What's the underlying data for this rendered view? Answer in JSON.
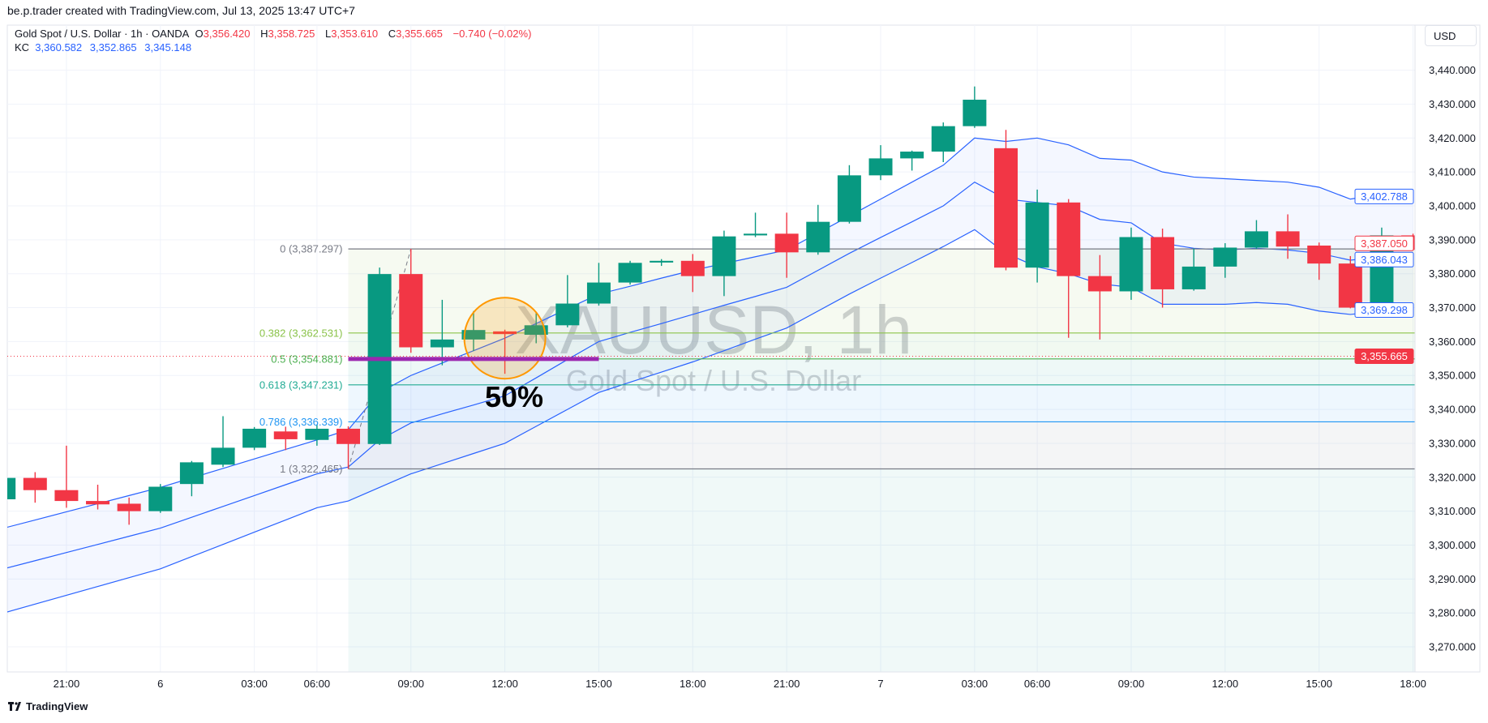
{
  "credit": "be.p.trader created with TradingView.com, Jul 13, 2025 13:47 UTC+7",
  "legend": {
    "symbol": "Gold Spot / U.S. Dollar · 1h · OANDA",
    "o_label": "O",
    "o": "3,356.420",
    "h_label": "H",
    "h": "3,358.725",
    "l_label": "L",
    "l": "3,353.610",
    "c_label": "C",
    "c": "3,355.665",
    "change": "−0.740 (−0.02%)",
    "kc_label": "KC",
    "kc_values": [
      "3,360.582",
      "3,352.865",
      "3,345.148"
    ]
  },
  "currency_button": "USD",
  "branding": "TradingView",
  "chart_data": {
    "type": "candlestick",
    "symbol_watermark": "XAUUSD, 1h",
    "symbol_watermark_sub": "Gold Spot / U.S. Dollar",
    "colors": {
      "up": "#089981",
      "down": "#f23645",
      "kc": "#2962ff",
      "fib_anchor_line": "#9c27b0",
      "highlight_circle": "#ff9800"
    },
    "ylim": [
      3263,
      3450
    ],
    "grid": true,
    "y_ticks": [
      "3,270.000",
      "3,280.000",
      "3,290.000",
      "3,300.000",
      "3,310.000",
      "3,320.000",
      "3,330.000",
      "3,340.000",
      "3,350.000",
      "3,360.000",
      "3,370.000",
      "3,380.000",
      "3,390.000",
      "3,400.000",
      "3,410.000",
      "3,420.000",
      "3,430.000",
      "3,440.000"
    ],
    "y_tick_values": [
      3270,
      3280,
      3290,
      3300,
      3310,
      3320,
      3330,
      3340,
      3350,
      3360,
      3370,
      3380,
      3390,
      3400,
      3410,
      3420,
      3430,
      3440
    ],
    "x_ticks": [
      {
        "candle": 2,
        "label": "21:00"
      },
      {
        "candle": 5,
        "label": "6"
      },
      {
        "candle": 8,
        "label": "03:00"
      },
      {
        "candle": 10,
        "label": "06:00"
      },
      {
        "candle": 13,
        "label": "09:00"
      },
      {
        "candle": 16,
        "label": "12:00"
      },
      {
        "candle": 19,
        "label": "15:00"
      },
      {
        "candle": 22,
        "label": "18:00"
      },
      {
        "candle": 25,
        "label": "21:00"
      },
      {
        "candle": 28,
        "label": "7"
      },
      {
        "candle": 31,
        "label": "03:00"
      },
      {
        "candle": 33,
        "label": "06:00"
      },
      {
        "candle": 36,
        "label": "09:00"
      },
      {
        "candle": 39,
        "label": "12:00"
      },
      {
        "candle": 42,
        "label": "15:00"
      },
      {
        "candle": 45,
        "label": "18:00"
      }
    ],
    "candles_fields": [
      "time",
      "open",
      "high",
      "low",
      "close"
    ],
    "candles": [
      [
        "19:00",
        3313.5,
        3320.0,
        3313.0,
        3319.8
      ],
      [
        "20:00",
        3319.8,
        3321.5,
        3312.5,
        3316.2
      ],
      [
        "21:00",
        3316.2,
        3329.3,
        3311.0,
        3313.0
      ],
      [
        "22:00",
        3313.0,
        3317.8,
        3310.5,
        3312.0
      ],
      [
        "23:00",
        3312.2,
        3314.0,
        3306.0,
        3310.0
      ],
      [
        "00:00",
        3310.0,
        3318.0,
        3309.5,
        3317.2
      ],
      [
        "01:00",
        3318.0,
        3324.8,
        3314.4,
        3324.4
      ],
      [
        "02:00",
        3323.7,
        3338.0,
        3323.0,
        3328.7
      ],
      [
        "03:00",
        3328.7,
        3334.8,
        3328.0,
        3334.3
      ],
      [
        "05:00",
        3333.5,
        3334.9,
        3328.0,
        3331.2
      ],
      [
        "06:00",
        3331.0,
        3335.5,
        3329.3,
        3334.3
      ],
      [
        "07:00",
        3334.3,
        3335.0,
        3322.465,
        3329.8
      ],
      [
        "08:00",
        3329.8,
        3381.8,
        3329.5,
        3379.9
      ],
      [
        "09:00",
        3379.9,
        3387.297,
        3356.7,
        3358.3
      ],
      [
        "10:00",
        3358.3,
        3372.3,
        3353.0,
        3360.6
      ],
      [
        "11:00",
        3360.6,
        3369.0,
        3357.2,
        3363.4
      ],
      [
        "12:00",
        3363.0,
        3363.5,
        3350.5,
        3362.2
      ],
      [
        "13:00",
        3362.0,
        3368.4,
        3359.5,
        3364.8
      ],
      [
        "14:00",
        3364.8,
        3379.6,
        3364.2,
        3371.2
      ],
      [
        "15:00",
        3371.2,
        3383.2,
        3370.6,
        3377.4
      ],
      [
        "16:00",
        3377.4,
        3383.8,
        3376.8,
        3383.2
      ],
      [
        "17:00",
        3383.3,
        3384.3,
        3382.3,
        3383.8
      ],
      [
        "18:00",
        3383.8,
        3385.8,
        3374.6,
        3379.3
      ],
      [
        "19:00",
        3379.3,
        3392.7,
        3373.4,
        3391.0
      ],
      [
        "20:00",
        3391.3,
        3398.0,
        3390.8,
        3391.8
      ],
      [
        "21:00",
        3391.8,
        3398.0,
        3378.8,
        3386.3
      ],
      [
        "22:00",
        3386.3,
        3400.3,
        3385.6,
        3395.3
      ],
      [
        "23:00",
        3395.3,
        3412.0,
        3394.8,
        3409.0
      ],
      [
        "00:00",
        3409.0,
        3417.9,
        3407.6,
        3414.0
      ],
      [
        "01:00",
        3414.0,
        3416.3,
        3410.4,
        3416.0
      ],
      [
        "02:00",
        3416.0,
        3424.6,
        3412.9,
        3423.5
      ],
      [
        "03:00",
        3423.5,
        3435.2,
        3423.0,
        3431.3
      ],
      [
        "05:00",
        3417.0,
        3422.4,
        3381.0,
        3381.8
      ],
      [
        "06:00",
        3381.8,
        3404.8,
        3377.4,
        3401.0
      ],
      [
        "07:00",
        3401.0,
        3402.0,
        3361.1,
        3379.3
      ],
      [
        "08:00",
        3379.3,
        3385.5,
        3360.6,
        3374.8
      ],
      [
        "09:00",
        3374.8,
        3393.6,
        3372.3,
        3390.8
      ],
      [
        "10:00",
        3390.8,
        3393.3,
        3370.0,
        3375.4
      ],
      [
        "11:00",
        3375.4,
        3387.4,
        3375.0,
        3382.1
      ],
      [
        "12:00",
        3382.1,
        3389.0,
        3378.8,
        3387.7
      ],
      [
        "13:00",
        3387.7,
        3395.8,
        3387.3,
        3392.5
      ],
      [
        "14:00",
        3392.5,
        3397.5,
        3384.4,
        3388.0
      ],
      [
        "15:00",
        3388.3,
        3389.2,
        3378.2,
        3383.0
      ],
      [
        "16:00",
        3383.0,
        3385.2,
        3369.8,
        3370.0
      ],
      [
        "17:00",
        3370.0,
        3393.6,
        3369.5,
        3391.3
      ],
      [
        "18:00",
        3391.3,
        3391.8,
        3386.8,
        3387.05
      ]
    ],
    "kc": {
      "upper": [
        3305,
        3307.4,
        3309.8,
        3312.2,
        3314.6,
        3317,
        3319.8,
        3322.6,
        3325.4,
        3328.2,
        3331,
        3334,
        3345,
        3350,
        3353.7,
        3357.3,
        3361,
        3365.3,
        3369.7,
        3374,
        3376.3,
        3378.7,
        3381,
        3383,
        3385,
        3387,
        3392,
        3397,
        3402,
        3407,
        3412,
        3420,
        3419,
        3420,
        3418,
        3414,
        3413.5,
        3410,
        3408.5,
        3408,
        3407.5,
        3407,
        3405.5,
        3402,
        3403.5,
        3402.788
      ],
      "middle": [
        3293,
        3295.4,
        3297.8,
        3300.2,
        3302.6,
        3305,
        3308.2,
        3311.4,
        3314.6,
        3317.8,
        3321,
        3323,
        3331,
        3336,
        3338.7,
        3341.3,
        3344,
        3349.3,
        3354.7,
        3360,
        3362.7,
        3365.3,
        3368,
        3370.7,
        3373.3,
        3376,
        3381,
        3386,
        3390.7,
        3395.3,
        3400,
        3407,
        3402,
        3401,
        3400,
        3396,
        3395,
        3389,
        3387.5,
        3387,
        3387.5,
        3387,
        3386,
        3384,
        3385,
        3386.043
      ],
      "lower": [
        3280,
        3282.6,
        3285.2,
        3287.8,
        3290.4,
        3293,
        3296.6,
        3300.2,
        3303.8,
        3307.4,
        3311,
        3313,
        3317,
        3321,
        3324,
        3327,
        3330,
        3335,
        3340,
        3345,
        3348,
        3351,
        3354,
        3357.3,
        3360.7,
        3364,
        3369,
        3374,
        3378.7,
        3383.3,
        3388,
        3393,
        3386,
        3382,
        3380,
        3377,
        3376,
        3371,
        3371,
        3371,
        3371.5,
        3371,
        3369,
        3368,
        3369,
        3369.298
      ]
    },
    "fib_retracement": {
      "levels": [
        {
          "ratio": "0",
          "label": "0 (3,387.297)",
          "price": 3387.297,
          "color": "#787b86"
        },
        {
          "ratio": "0.382",
          "label": "0.382 (3,362.531)",
          "price": 3362.531,
          "color": "#8bc34a"
        },
        {
          "ratio": "0.5",
          "label": "0.5 (3,354.881)",
          "price": 3354.881,
          "color": "#4caf50"
        },
        {
          "ratio": "0.618",
          "label": "0.618 (3,347.231)",
          "price": 3347.231,
          "color": "#22ab94"
        },
        {
          "ratio": "0.786",
          "label": "0.786 (3,336.339)",
          "price": 3336.339,
          "color": "#2196f3"
        },
        {
          "ratio": "1",
          "label": "1 (3,322.465)",
          "price": 3322.465,
          "color": "#787b86"
        }
      ]
    },
    "annotation_text": "50%",
    "current_price": {
      "value": 3355.665,
      "label": "3,355.665",
      "color": "#f23645"
    },
    "axis_price_labels": [
      {
        "label": "3,402.788",
        "value": 3402.788,
        "color": "#2962ff",
        "style": "outline"
      },
      {
        "label": "3,387.050",
        "value": 3387.05,
        "color": "#f23645",
        "style": "outline"
      },
      {
        "label": "3,386.043",
        "value": 3386.043,
        "color": "#2962ff",
        "style": "outline"
      },
      {
        "label": "3,369.298",
        "value": 3369.298,
        "color": "#2962ff",
        "style": "outline"
      },
      {
        "label": "3,355.665",
        "value": 3355.665,
        "color": "#f23645",
        "style": "filled"
      }
    ]
  }
}
